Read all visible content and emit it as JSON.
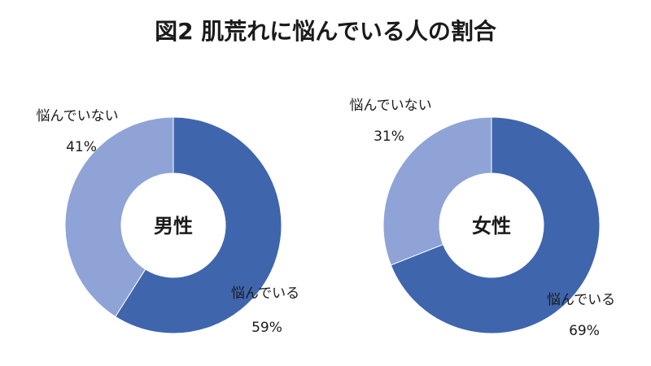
{
  "chart_data": [
    {
      "type": "pie",
      "title": "図2 肌荒れに悩んでいる人の割合",
      "center_label": "男性",
      "slices": [
        {
          "label": "悩んでいる",
          "value": 59,
          "value_label": "59%",
          "color": "#3f65ad"
        },
        {
          "label": "悩んでいない",
          "value": 41,
          "value_label": "41%",
          "color": "#8fa3d6"
        }
      ]
    },
    {
      "type": "pie",
      "center_label": "女性",
      "slices": [
        {
          "label": "悩んでいる",
          "value": 69,
          "value_label": "69%",
          "color": "#3f65ad"
        },
        {
          "label": "悩んでいない",
          "value": 31,
          "value_label": "31%",
          "color": "#8fa3d6"
        }
      ]
    }
  ]
}
